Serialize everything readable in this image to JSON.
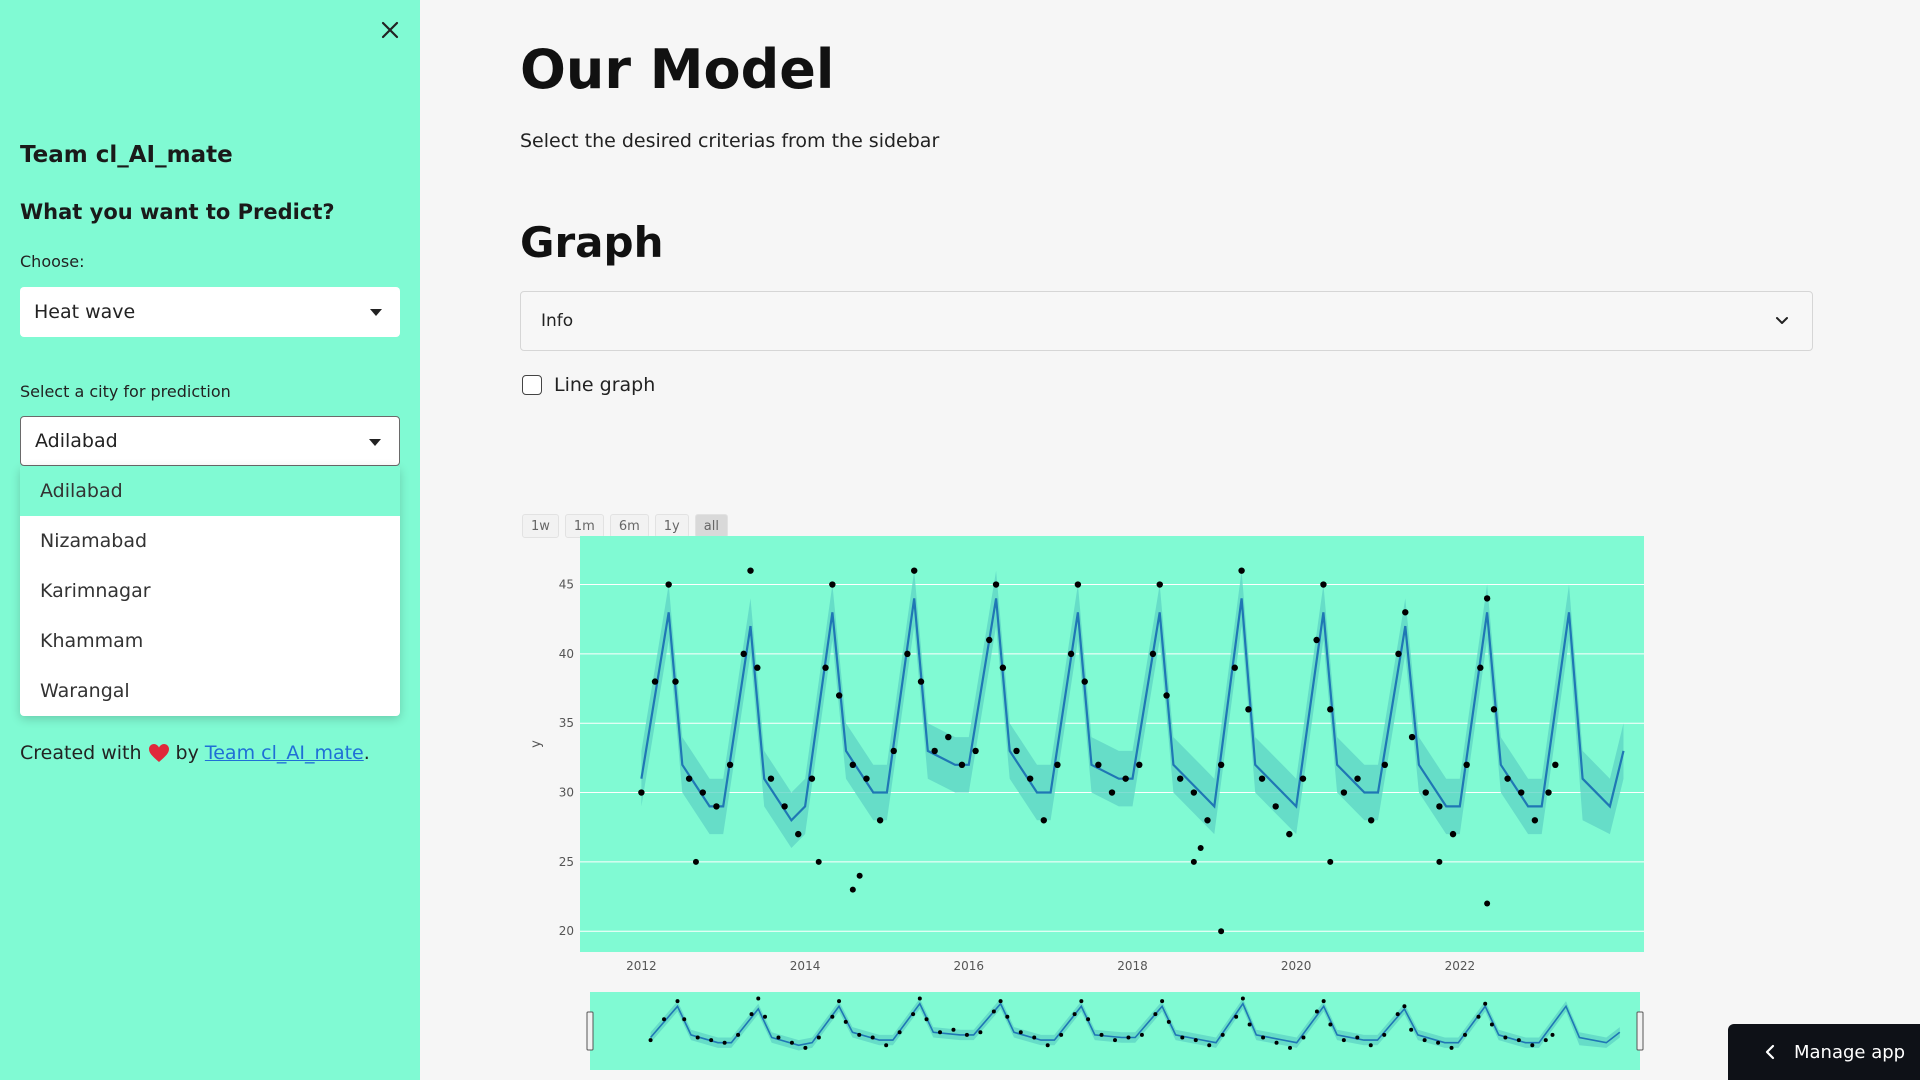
{
  "sidebar": {
    "team_title": "Team cl_AI_mate",
    "question": "What you want to Predict?",
    "choose_label": "Choose:",
    "choose_value": "Heat wave",
    "city_label": "Select a city for prediction",
    "city_value": "Adilabad",
    "city_options": [
      "Adilabad",
      "Nizamabad",
      "Karimnagar",
      "Khammam",
      "Warangal"
    ],
    "created_prefix": "Created with",
    "created_by": "by",
    "created_link": "Team cl_AI_mate",
    "created_suffix": "."
  },
  "main": {
    "title": "Our Model",
    "description": "Select the desired criterias from the sidebar",
    "graph_title": "Graph",
    "expander_label": "Info",
    "checkbox_label": "Line graph",
    "range_buttons": [
      "1w",
      "1m",
      "6m",
      "1y",
      "all"
    ],
    "active_range": "all"
  },
  "footer": {
    "manage_app": "Manage app"
  },
  "colors": {
    "sidebar_bg": "#80fad3",
    "plot_bg": "#80fad3",
    "forecast_line": "#1f77b4",
    "uncertainty_band": "#5fd6c6",
    "points": "#000000"
  },
  "chart_data": {
    "type": "line",
    "title": "",
    "xlabel": "",
    "ylabel": "y",
    "x_ticks": [
      "2012",
      "2014",
      "2016",
      "2018",
      "2020",
      "2022"
    ],
    "y_ticks": [
      20,
      25,
      30,
      35,
      40,
      45
    ],
    "xlim": [
      "2011-04",
      "2024-04"
    ],
    "ylim": [
      18.5,
      48.5
    ],
    "grid": true,
    "legend": "none",
    "series": [
      {
        "kind": "forecast",
        "x": [
          "2012-01",
          "2012-05",
          "2012-07",
          "2012-11",
          "2013-01",
          "2013-05",
          "2013-07",
          "2013-11",
          "2014-01",
          "2014-05",
          "2014-07",
          "2014-11",
          "2015-01",
          "2015-05",
          "2015-07",
          "2015-11",
          "2016-01",
          "2016-05",
          "2016-07",
          "2016-11",
          "2017-01",
          "2017-05",
          "2017-07",
          "2017-11",
          "2018-01",
          "2018-05",
          "2018-07",
          "2018-11",
          "2019-01",
          "2019-05",
          "2019-07",
          "2019-11",
          "2020-01",
          "2020-05",
          "2020-07",
          "2020-11",
          "2021-01",
          "2021-05",
          "2021-07",
          "2021-11",
          "2022-01",
          "2022-05",
          "2022-07",
          "2022-11",
          "2023-01",
          "2023-05",
          "2023-07",
          "2023-11",
          "2024-01"
        ],
        "values": [
          31,
          43,
          32,
          29,
          29,
          42,
          31,
          28,
          29,
          43,
          33,
          30,
          30,
          44,
          33,
          32,
          32,
          44,
          33,
          30,
          30,
          43,
          32,
          31,
          31,
          43,
          32,
          30,
          29,
          44,
          32,
          30,
          29,
          43,
          32,
          30,
          30,
          42,
          32,
          29,
          29,
          43,
          32,
          29,
          29,
          43,
          31,
          29,
          33
        ]
      }
    ],
    "band": {
      "x": [
        "2012-01",
        "2012-05",
        "2012-07",
        "2012-11",
        "2013-01",
        "2013-05",
        "2013-07",
        "2013-11",
        "2014-01",
        "2014-05",
        "2014-07",
        "2014-11",
        "2015-01",
        "2015-05",
        "2015-07",
        "2015-11",
        "2016-01",
        "2016-05",
        "2016-07",
        "2016-11",
        "2017-01",
        "2017-05",
        "2017-07",
        "2017-11",
        "2018-01",
        "2018-05",
        "2018-07",
        "2018-11",
        "2019-01",
        "2019-05",
        "2019-07",
        "2019-11",
        "2020-01",
        "2020-05",
        "2020-07",
        "2020-11",
        "2021-01",
        "2021-05",
        "2021-07",
        "2021-11",
        "2022-01",
        "2022-05",
        "2022-07",
        "2022-11",
        "2023-01",
        "2023-05",
        "2023-07",
        "2023-11",
        "2024-01"
      ],
      "lower": [
        29,
        41,
        30,
        27,
        27,
        40,
        29,
        26,
        27,
        41,
        31,
        28,
        28,
        42,
        31,
        30,
        30,
        42,
        31,
        28,
        28,
        41,
        30,
        29,
        29,
        41,
        30,
        28,
        27,
        42,
        30,
        28,
        27,
        41,
        30,
        28,
        28,
        40,
        30,
        27,
        27,
        41,
        30,
        27,
        27,
        41,
        28,
        27,
        31
      ],
      "upper": [
        33,
        45,
        34,
        31,
        31,
        44,
        33,
        30,
        31,
        45,
        35,
        32,
        32,
        46,
        35,
        34,
        34,
        46,
        35,
        32,
        32,
        45,
        34,
        33,
        33,
        45,
        34,
        32,
        31,
        46,
        34,
        32,
        31,
        45,
        34,
        32,
        32,
        44,
        34,
        31,
        31,
        45,
        34,
        31,
        31,
        45,
        33,
        31,
        35
      ]
    },
    "observed": {
      "x": [
        "2012-01",
        "2012-03",
        "2012-05",
        "2012-06",
        "2012-08",
        "2012-10",
        "2012-12",
        "2013-02",
        "2013-04",
        "2013-05",
        "2013-06",
        "2013-08",
        "2013-10",
        "2013-12",
        "2014-02",
        "2014-04",
        "2014-05",
        "2014-06",
        "2014-08",
        "2014-10",
        "2014-12",
        "2015-02",
        "2015-04",
        "2015-05",
        "2015-06",
        "2015-08",
        "2015-10",
        "2015-12",
        "2016-02",
        "2016-04",
        "2016-05",
        "2016-06",
        "2016-08",
        "2016-10",
        "2016-12",
        "2017-02",
        "2017-04",
        "2017-05",
        "2017-06",
        "2017-08",
        "2017-10",
        "2017-12",
        "2018-02",
        "2018-04",
        "2018-05",
        "2018-06",
        "2018-08",
        "2018-10",
        "2018-12",
        "2019-02",
        "2019-04",
        "2019-05",
        "2019-06",
        "2019-08",
        "2019-10",
        "2019-12",
        "2020-02",
        "2020-04",
        "2020-05",
        "2020-06",
        "2020-08",
        "2020-10",
        "2020-12",
        "2021-02",
        "2021-04",
        "2021-05",
        "2021-06",
        "2021-08",
        "2021-10",
        "2021-12",
        "2022-02",
        "2022-04",
        "2022-05",
        "2022-06",
        "2022-08",
        "2022-10",
        "2022-12",
        "2023-02",
        "2023-03"
      ],
      "values": [
        30,
        38,
        45,
        38,
        31,
        30,
        29,
        32,
        40,
        46,
        39,
        31,
        29,
        27,
        31,
        39,
        45,
        37,
        32,
        31,
        28,
        33,
        40,
        46,
        38,
        33,
        34,
        32,
        33,
        41,
        45,
        39,
        33,
        31,
        28,
        32,
        40,
        45,
        38,
        32,
        30,
        31,
        32,
        40,
        45,
        37,
        31,
        30,
        28,
        32,
        39,
        46,
        36,
        31,
        29,
        27,
        31,
        41,
        45,
        36,
        30,
        31,
        28,
        32,
        40,
        43,
        34,
        30,
        29,
        27,
        32,
        39,
        44,
        36,
        31,
        30,
        28,
        30,
        32
      ]
    },
    "outliers": {
      "x": [
        "2012-09",
        "2014-03",
        "2014-08",
        "2014-09",
        "2018-10",
        "2018-11",
        "2019-02",
        "2020-06",
        "2021-10",
        "2022-05"
      ],
      "values": [
        25,
        25,
        23,
        24,
        25,
        26,
        20,
        25,
        25,
        22
      ]
    }
  }
}
